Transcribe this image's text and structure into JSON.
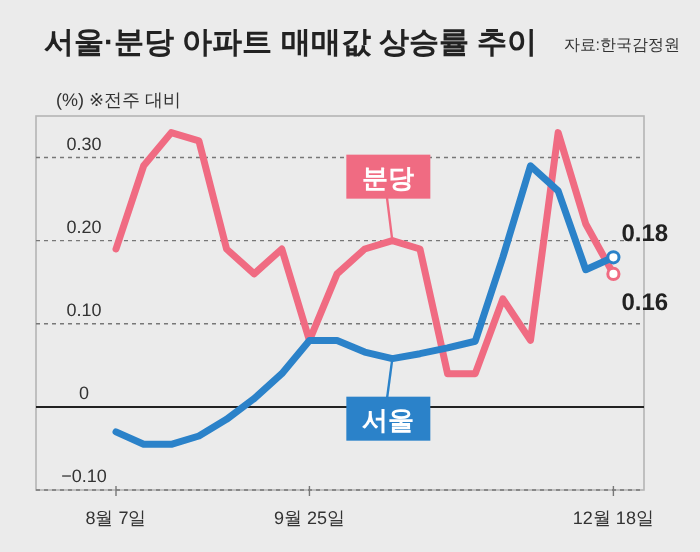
{
  "chart_data": {
    "type": "line",
    "title": "서울·분당 아파트 매매값 상승률 추이",
    "ylabel": "(%) ※전주 대비",
    "annotations": [
      "자료:한국감정원"
    ],
    "categories": [
      "8월 7일",
      null,
      null,
      null,
      null,
      null,
      null,
      "9월 25일",
      null,
      null,
      null,
      null,
      null,
      null,
      null,
      null,
      null,
      null,
      "12월 18일"
    ],
    "series": [
      {
        "name": "분당",
        "color": "#f06b82",
        "values": [
          0.19,
          0.29,
          0.33,
          0.32,
          0.19,
          0.16,
          0.19,
          0.08,
          0.16,
          0.19,
          0.2,
          0.19,
          0.04,
          0.04,
          0.13,
          0.08,
          0.33,
          0.22,
          0.16
        ],
        "value_labels": [
          null,
          null,
          null,
          null,
          null,
          null,
          null,
          null,
          null,
          null,
          null,
          null,
          null,
          null,
          null,
          null,
          null,
          null,
          "0.16"
        ]
      },
      {
        "name": "서울",
        "color": "#2b82c9",
        "values": [
          -0.03,
          -0.045,
          -0.045,
          -0.035,
          -0.015,
          0.01,
          0.04,
          0.08,
          0.08,
          0.066,
          0.058,
          0.064,
          0.071,
          0.079,
          0.18,
          0.29,
          0.26,
          0.165,
          0.18
        ],
        "value_labels": [
          null,
          null,
          null,
          null,
          null,
          null,
          null,
          null,
          null,
          null,
          null,
          null,
          null,
          null,
          null,
          null,
          null,
          null,
          "0.18"
        ]
      }
    ],
    "ylim": [
      -0.1,
      0.35
    ],
    "yticks": [
      {
        "value": 0.3,
        "label": "0.30"
      },
      {
        "value": 0.2,
        "label": "0.20"
      },
      {
        "value": 0.1,
        "label": "0.10"
      },
      0,
      {
        "value": -0.1,
        "label": "−0.10"
      }
    ],
    "ref_lines": [
      {
        "axis": "y",
        "value": 0,
        "color": "#222222",
        "line_style": "solid"
      }
    ],
    "grid": "y",
    "legend": false,
    "line_style": "solid"
  }
}
